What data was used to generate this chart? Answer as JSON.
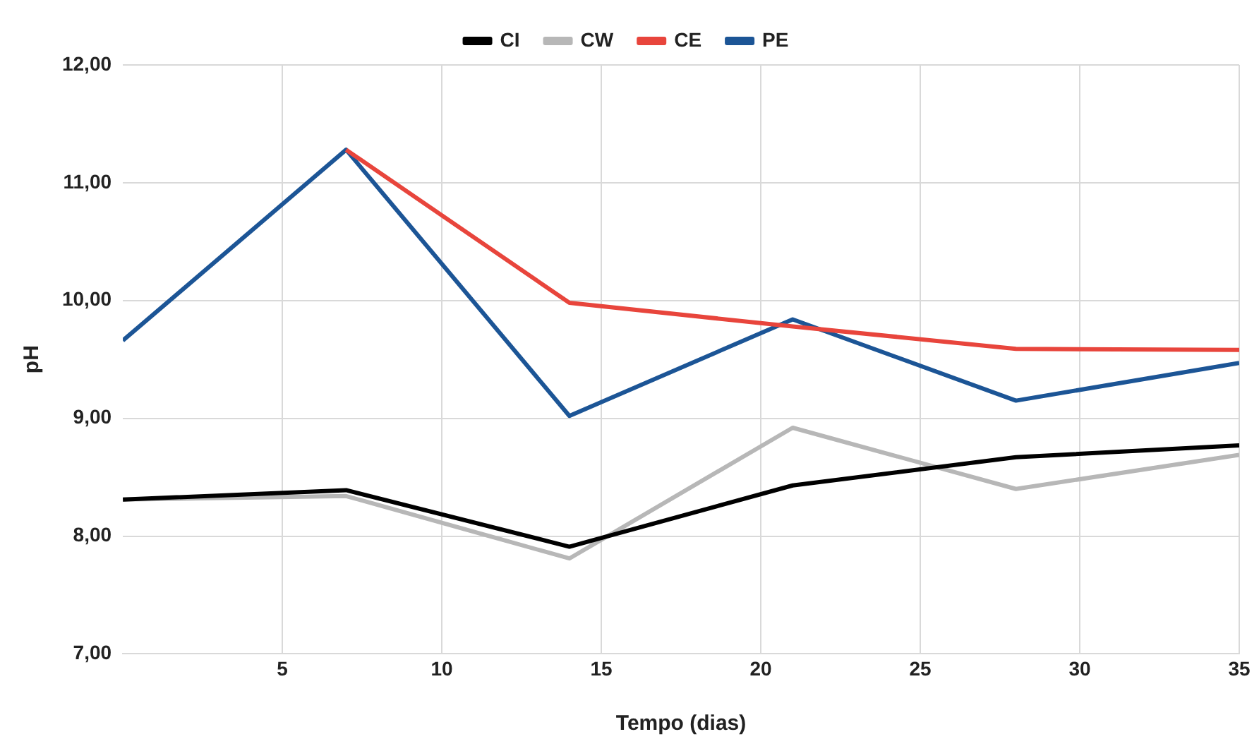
{
  "chart_data": {
    "type": "line",
    "xlabel": "Tempo (dias)",
    "ylabel": "pH",
    "x": [
      0,
      7,
      14,
      21,
      28,
      35
    ],
    "series": [
      {
        "name": "CI",
        "color": "#000000",
        "values": [
          8.31,
          8.39,
          7.91,
          8.43,
          8.67,
          8.77
        ]
      },
      {
        "name": "CW",
        "color": "#b7b7b7",
        "values": [
          8.31,
          8.34,
          7.81,
          8.92,
          8.4,
          8.69
        ]
      },
      {
        "name": "CE",
        "color": "#e8453c",
        "values": [
          null,
          11.28,
          9.98,
          9.78,
          9.59,
          9.58
        ]
      },
      {
        "name": "PE",
        "color": "#1c5596",
        "values": [
          9.66,
          11.28,
          9.02,
          9.84,
          9.15,
          9.47
        ]
      }
    ],
    "xlim": [
      0,
      35
    ],
    "xticks": [
      5,
      10,
      15,
      20,
      25,
      30,
      35
    ],
    "ylim": [
      7,
      12
    ],
    "yticks": [
      {
        "value": 7,
        "label": "7,00"
      },
      {
        "value": 8,
        "label": "8,00"
      },
      {
        "value": 9,
        "label": "9,00"
      },
      {
        "value": 10,
        "label": "10,00"
      },
      {
        "value": 11,
        "label": "11,00"
      },
      {
        "value": 12,
        "label": "12,00"
      }
    ],
    "grid": true,
    "legend": "top",
    "marker": "none",
    "line_style": "solid"
  }
}
